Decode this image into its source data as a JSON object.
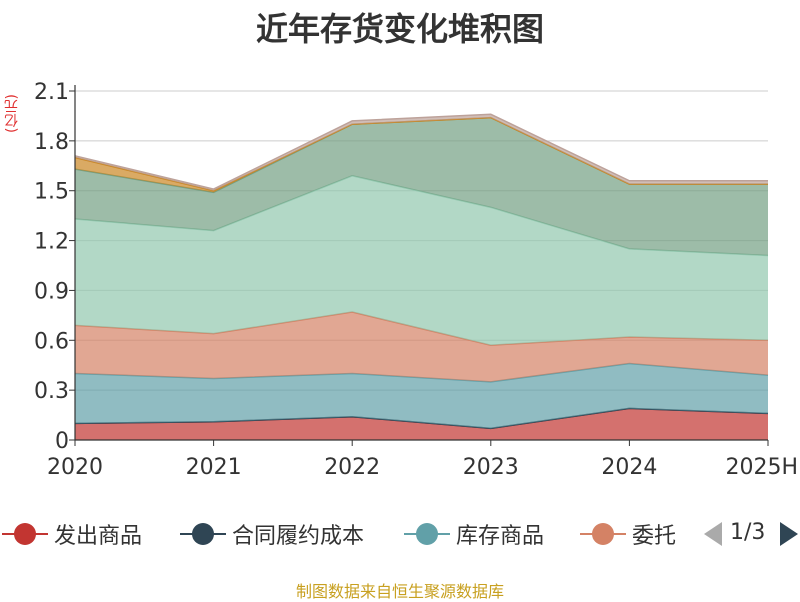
{
  "title": "近年存货变化堆积图",
  "unit": "(亿元)",
  "source": "制图数据来自恒生聚源数据库",
  "legend": {
    "items": [
      {
        "name": "发出商品",
        "color": "#c23531"
      },
      {
        "name": "合同履约成本",
        "color": "#2f4554"
      },
      {
        "name": "库存商品",
        "color": "#61a0a8"
      },
      {
        "name": "委托",
        "color": "#d48265"
      }
    ],
    "page": "1/3"
  },
  "chart_data": {
    "type": "area",
    "stacked": true,
    "categories": [
      "2020",
      "2021",
      "2022",
      "2023",
      "2024",
      "2025H"
    ],
    "ylim": [
      0,
      2.1
    ],
    "yticks": [
      "0",
      "0.3",
      "0.6",
      "0.9",
      "1.2",
      "1.5",
      "1.8",
      "2.1"
    ],
    "grid": true,
    "series": [
      {
        "name": "发出商品",
        "color": "#c23531",
        "values": [
          0.1,
          0.11,
          0.14,
          0.07,
          0.19,
          0.16
        ]
      },
      {
        "name": "合同履约成本",
        "color": "#2f4554",
        "values": [
          0.0,
          0.0,
          0.0,
          0.0,
          0.0,
          0.0
        ]
      },
      {
        "name": "库存商品",
        "color": "#61a0a8",
        "values": [
          0.3,
          0.26,
          0.26,
          0.28,
          0.27,
          0.23
        ]
      },
      {
        "name": "委托",
        "color": "#d48265",
        "values": [
          0.29,
          0.27,
          0.37,
          0.22,
          0.16,
          0.21
        ]
      },
      {
        "color": "#91c7ae",
        "values": [
          0.64,
          0.62,
          0.82,
          0.83,
          0.53,
          0.51
        ]
      },
      {
        "color": "#749f83",
        "values": [
          0.3,
          0.23,
          0.31,
          0.54,
          0.39,
          0.43
        ]
      },
      {
        "color": "#ca8622",
        "values": [
          0.07,
          0.01,
          0.0,
          0.0,
          0.0,
          0.0
        ]
      },
      {
        "color": "#bda29a",
        "values": [
          0.01,
          0.01,
          0.02,
          0.02,
          0.02,
          0.02
        ]
      }
    ]
  }
}
